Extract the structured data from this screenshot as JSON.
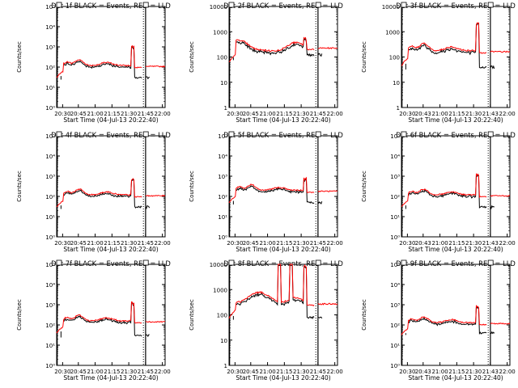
{
  "figure": {
    "x_ticks": [
      "20:30",
      "20:45",
      "21:00",
      "21:15",
      "21:30",
      "21:45",
      "22:00"
    ],
    "x_ticks_alt": [
      "20:30",
      "20:43",
      "21:00",
      "21:15",
      "21:30",
      "21:43",
      "22:00"
    ],
    "xlabel": "Start Time (04-Jul-13 20:22:40)",
    "ylabel": "Counts/sec",
    "colors": {
      "events": "#000000",
      "lld": "#ff0000",
      "axes": "#000000"
    }
  },
  "chart_data": [
    {
      "type": "line",
      "title": "Det 1f BLACK = Events, RED = LLD",
      "scale": "exp",
      "ylim": [
        1,
        100000
      ],
      "y_ticks": [
        "10⁰",
        "10¹",
        "10²",
        "10³",
        "10⁴",
        "10⁵"
      ],
      "x_ticks_key": "x_ticks",
      "series": [
        {
          "name": "BLACK = Events",
          "values_profile": "spiky"
        },
        {
          "name": "RED = LLD",
          "values_profile": "spiky"
        }
      ],
      "lld_baseline": 120,
      "events_level": 30,
      "spike_peak": 1200
    },
    {
      "type": "line",
      "title": "Det 2f BLACK = Events, RED = LLD",
      "scale": "dec",
      "ylim": [
        1,
        10000
      ],
      "y_ticks": [
        "1",
        "10",
        "100",
        "1000",
        "10000"
      ],
      "x_ticks_key": "x_ticks",
      "series": [
        {
          "name": "BLACK = Events",
          "values_profile": "hump"
        },
        {
          "name": "RED = LLD",
          "values_profile": "hump"
        }
      ],
      "lld_baseline": 250,
      "events_level": 120,
      "spike_peak": 600
    },
    {
      "type": "line",
      "title": "Det 3f BLACK = Events, RED = LLD",
      "scale": "dec",
      "ylim": [
        1,
        10000
      ],
      "y_ticks": [
        "1",
        "10",
        "100",
        "1000",
        "10000"
      ],
      "x_ticks_key": "x_ticks_alt",
      "series": [
        {
          "name": "BLACK = Events",
          "values_profile": "spiky"
        },
        {
          "name": "RED = LLD",
          "values_profile": "spiky"
        }
      ],
      "lld_baseline": 180,
      "events_level": 40,
      "spike_peak": 2500
    },
    {
      "type": "line",
      "title": "Det 4f BLACK = Events, RED = LLD",
      "scale": "exp",
      "ylim": [
        1,
        100000
      ],
      "y_ticks": [
        "10⁰",
        "10¹",
        "10²",
        "10³",
        "10⁴",
        "10⁵"
      ],
      "x_ticks_key": "x_ticks",
      "series": [
        {
          "name": "BLACK = Events",
          "values_profile": "spiky"
        },
        {
          "name": "RED = LLD",
          "values_profile": "spiky"
        }
      ],
      "lld_baseline": 120,
      "events_level": 30,
      "spike_peak": 800
    },
    {
      "type": "line",
      "title": "Det 5f BLACK = Events, RED = LLD",
      "scale": "exp",
      "ylim": [
        1,
        100000
      ],
      "y_ticks": [
        "10⁰",
        "10¹",
        "10²",
        "10³",
        "10⁴",
        "10⁵"
      ],
      "x_ticks_key": "x_ticks",
      "series": [
        {
          "name": "BLACK = Events",
          "values_profile": "spiky"
        },
        {
          "name": "RED = LLD",
          "values_profile": "spiky"
        }
      ],
      "lld_baseline": 200,
      "events_level": 50,
      "spike_peak": 900
    },
    {
      "type": "line",
      "title": "Det 6f BLACK = Events, RED = LLD",
      "scale": "exp",
      "ylim": [
        1,
        100000
      ],
      "y_ticks": [
        "10⁰",
        "10¹",
        "10²",
        "10³",
        "10⁴",
        "10⁵"
      ],
      "x_ticks_key": "x_ticks_alt",
      "series": [
        {
          "name": "BLACK = Events",
          "values_profile": "spiky"
        },
        {
          "name": "RED = LLD",
          "values_profile": "spiky"
        }
      ],
      "lld_baseline": 120,
      "events_level": 30,
      "spike_peak": 1500
    },
    {
      "type": "line",
      "title": "Det 7f BLACK = Events, RED = LLD",
      "scale": "exp",
      "ylim": [
        1,
        100000
      ],
      "y_ticks": [
        "10⁰",
        "10¹",
        "10²",
        "10³",
        "10⁴",
        "10⁵"
      ],
      "x_ticks_key": "x_ticks",
      "series": [
        {
          "name": "BLACK = Events",
          "values_profile": "spiky"
        },
        {
          "name": "RED = LLD",
          "values_profile": "spiky"
        }
      ],
      "lld_baseline": 160,
      "events_level": 30,
      "spike_peak": 1400
    },
    {
      "type": "line",
      "title": "Det 8f BLACK = Events, RED = LLD",
      "scale": "dec",
      "ylim": [
        1,
        10000
      ],
      "y_ticks": [
        "1",
        "10",
        "100",
        "1000",
        "10000"
      ],
      "x_ticks_key": "x_ticks",
      "series": [
        {
          "name": "BLACK = Events",
          "values_profile": "saturate"
        },
        {
          "name": "RED = LLD",
          "values_profile": "saturate"
        }
      ],
      "lld_baseline": 300,
      "events_level": 80,
      "spike_peak": 10000
    },
    {
      "type": "line",
      "title": "Det 9f BLACK = Events, RED = LLD",
      "scale": "exp",
      "ylim": [
        1,
        100000
      ],
      "y_ticks": [
        "10⁰",
        "10¹",
        "10²",
        "10³",
        "10⁴",
        "10⁵"
      ],
      "x_ticks_key": "x_ticks_alt",
      "series": [
        {
          "name": "BLACK = Events",
          "values_profile": "spiky"
        },
        {
          "name": "RED = LLD",
          "values_profile": "spiky"
        }
      ],
      "lld_baseline": 130,
      "events_level": 40,
      "spike_peak": 1000
    }
  ]
}
